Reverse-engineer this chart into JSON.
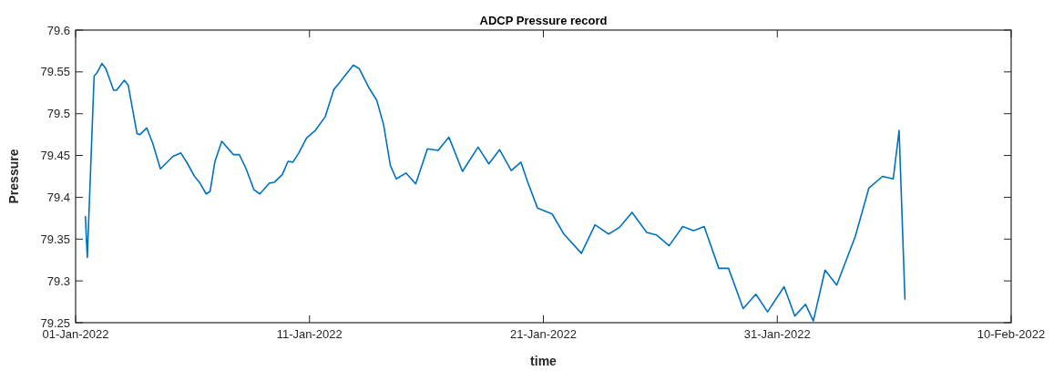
{
  "chart_data": {
    "type": "line",
    "title": "ADCP Pressure record",
    "xlabel": "time",
    "ylabel": "Pressure",
    "xlim": [
      "2022-01-01",
      "2022-02-10"
    ],
    "xticks": [
      {
        "value": "2022-01-01",
        "label": "01-Jan-2022"
      },
      {
        "value": "2022-01-11",
        "label": "11-Jan-2022"
      },
      {
        "value": "2022-01-21",
        "label": "21-Jan-2022"
      },
      {
        "value": "2022-01-31",
        "label": "31-Jan-2022"
      },
      {
        "value": "2022-02-10",
        "label": "10-Feb-2022"
      }
    ],
    "ylim": [
      79.25,
      79.6
    ],
    "yticks": [
      79.25,
      79.3,
      79.35,
      79.4,
      79.45,
      79.5,
      79.55,
      79.6
    ],
    "grid": false,
    "marker": "none",
    "line_style": "solid",
    "x": [
      "2022-01-01T10:00",
      "2022-01-01T12:00",
      "2022-01-01T19:00",
      "2022-01-01T22:00",
      "2022-01-02T03:00",
      "2022-01-02T07:00",
      "2022-01-02T15:00",
      "2022-01-02T18:00",
      "2022-01-03T02:00",
      "2022-01-03T06:00",
      "2022-01-03T15:00",
      "2022-01-03T18:00",
      "2022-01-04T01:00",
      "2022-01-04T07:00",
      "2022-01-04T15:00",
      "2022-01-05T04:00",
      "2022-01-05T12:00",
      "2022-01-05T19:00",
      "2022-01-06T02:00",
      "2022-01-06T07:00",
      "2022-01-06T14:00",
      "2022-01-06T18:00",
      "2022-01-06T23:00",
      "2022-01-07T06:00",
      "2022-01-07T18:00",
      "2022-01-08T00:00",
      "2022-01-08T07:00",
      "2022-01-08T15:00",
      "2022-01-08T21:00",
      "2022-01-09T07:00",
      "2022-01-09T12:00",
      "2022-01-09T20:00",
      "2022-01-10T02:00",
      "2022-01-10T07:00",
      "2022-01-10T13:00",
      "2022-01-10T21:00",
      "2022-01-11T06:00",
      "2022-01-11T16:00",
      "2022-01-12T01:00",
      "2022-01-12T06:00",
      "2022-01-12T12:00",
      "2022-01-12T21:00",
      "2022-01-13T03:00",
      "2022-01-13T13:00",
      "2022-01-13T21:00",
      "2022-01-14T04:00",
      "2022-01-14T11:00",
      "2022-01-14T17:00",
      "2022-01-15T03:00",
      "2022-01-15T13:00",
      "2022-01-16T01:00",
      "2022-01-16T12:00",
      "2022-01-16T23:00",
      "2022-01-17T13:00",
      "2022-01-18T05:00",
      "2022-01-18T16:00",
      "2022-01-19T03:00",
      "2022-01-19T15:00",
      "2022-01-20T01:00",
      "2022-01-20T08:00",
      "2022-01-20T18:00",
      "2022-01-21T09:00",
      "2022-01-21T21:00",
      "2022-01-22T15:00",
      "2022-01-23T05:00",
      "2022-01-23T19:00",
      "2022-01-24T06:00",
      "2022-01-24T19:00",
      "2022-01-25T10:00",
      "2022-01-25T20:00",
      "2022-01-26T09:00",
      "2022-01-26T23:00",
      "2022-01-27T10:00",
      "2022-01-27T21:00",
      "2022-01-28T12:00",
      "2022-01-28T22:00",
      "2022-01-29T13:00",
      "2022-01-30T02:00",
      "2022-01-30T14:00",
      "2022-01-31T07:00",
      "2022-01-31T18:00",
      "2022-02-01T05:00",
      "2022-02-01T13:00",
      "2022-02-02T01:00",
      "2022-02-02T13:00",
      "2022-02-03T08:00",
      "2022-02-03T22:00",
      "2022-02-04T12:00",
      "2022-02-04T23:00",
      "2022-02-05T05:00",
      "2022-02-05T11:00"
    ],
    "series": [
      {
        "color": "#0072bd",
        "values": [
          79.377,
          79.328,
          79.545,
          79.549,
          79.56,
          79.554,
          79.528,
          79.528,
          79.54,
          79.534,
          79.476,
          79.475,
          79.483,
          79.465,
          79.434,
          79.449,
          79.453,
          79.44,
          79.425,
          79.418,
          79.404,
          79.407,
          79.443,
          79.467,
          79.451,
          79.451,
          79.434,
          79.409,
          79.404,
          79.417,
          79.418,
          79.427,
          79.443,
          79.442,
          79.453,
          79.471,
          79.48,
          79.496,
          79.529,
          79.536,
          79.545,
          79.558,
          79.554,
          79.531,
          79.516,
          79.487,
          79.438,
          79.422,
          79.429,
          79.416,
          79.458,
          79.456,
          79.472,
          79.431,
          79.46,
          79.44,
          79.457,
          79.432,
          79.442,
          79.418,
          79.387,
          79.38,
          79.356,
          79.333,
          79.367,
          79.356,
          79.364,
          79.382,
          79.358,
          79.355,
          79.342,
          79.365,
          79.36,
          79.365,
          79.315,
          79.315,
          79.267,
          79.284,
          79.263,
          79.293,
          79.258,
          79.272,
          79.252,
          79.313,
          79.295,
          79.353,
          79.411,
          79.425,
          79.422,
          79.48,
          79.278
        ]
      }
    ]
  }
}
